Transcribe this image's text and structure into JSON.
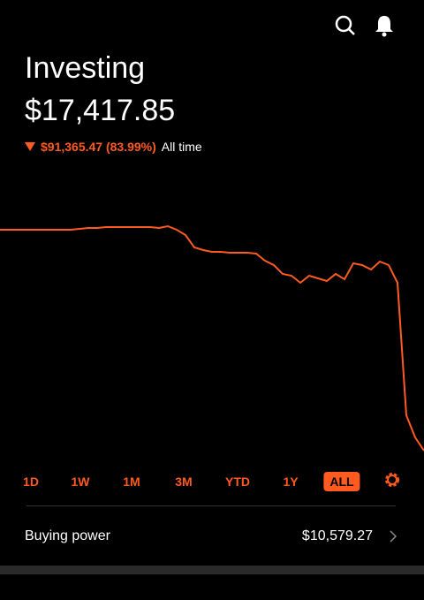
{
  "header": {
    "title": "Investing",
    "balance": "$17,417.85",
    "change": "$91,365.47 (83.99%)",
    "period": "All time"
  },
  "chart_data": {
    "type": "line",
    "color": "#ff5a1f",
    "values": [
      108783,
      108783,
      108783,
      108783,
      108783,
      108783,
      108783,
      108783,
      108783,
      109149,
      109514,
      109514,
      109880,
      109880,
      109880,
      109880,
      109880,
      109880,
      109514,
      110245,
      108783,
      106590,
      101473,
      100377,
      99645,
      99645,
      99280,
      99280,
      99280,
      98915,
      95990,
      94163,
      90508,
      89777,
      86853,
      89777,
      88680,
      87584,
      90508,
      88315,
      94894,
      94163,
      92335,
      95625,
      94163,
      86853,
      32028,
      22890,
      17417.85
    ]
  },
  "range_tabs": [
    "1D",
    "1W",
    "1M",
    "3M",
    "YTD",
    "1Y",
    "ALL"
  ],
  "selected_tab": "ALL",
  "buying_power": {
    "label": "Buying power",
    "amount": "$10,579.27"
  }
}
